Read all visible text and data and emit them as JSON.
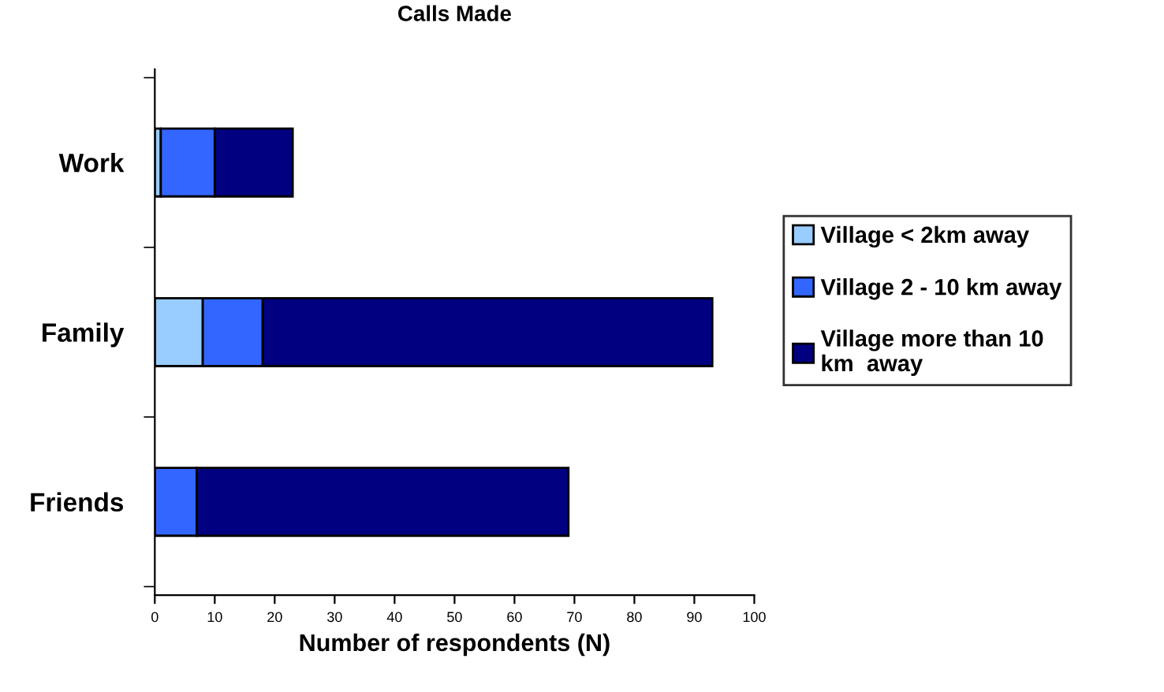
{
  "chart_data": {
    "type": "bar",
    "orientation": "horizontal",
    "stacked": true,
    "title": "Calls Made",
    "xlabel": "Number of respondents (N)",
    "categories": [
      "Work",
      "Family",
      "Friends"
    ],
    "series": [
      {
        "name": "Village < 2km away",
        "color": "#99ccff",
        "values": [
          1,
          8,
          0
        ]
      },
      {
        "name": "Village 2 - 10 km away",
        "color": "#3366ff",
        "values": [
          9,
          10,
          7
        ]
      },
      {
        "name": "Village more than 10\nkm  away",
        "color": "#000080",
        "values": [
          13,
          75,
          62
        ]
      }
    ],
    "xlim": [
      0,
      100
    ],
    "xticks": [
      0,
      10,
      20,
      30,
      40,
      50,
      60,
      70,
      80,
      90,
      100
    ],
    "grid": false,
    "legend": "right"
  }
}
